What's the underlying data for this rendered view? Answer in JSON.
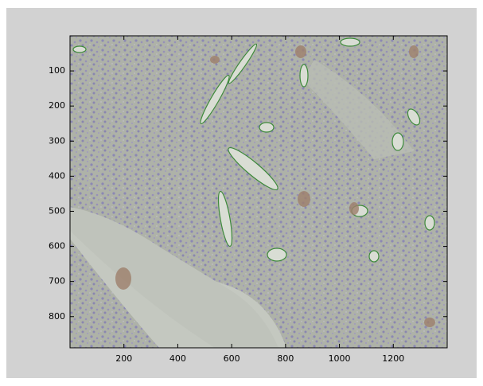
{
  "chart_data": {
    "type": "image",
    "xlim": [
      0,
      1400
    ],
    "ylim": [
      0,
      889
    ],
    "y_reversed": true,
    "xticks": [
      200,
      400,
      600,
      800,
      1000,
      1200
    ],
    "yticks": [
      100,
      200,
      300,
      400,
      500,
      600,
      700,
      800
    ]
  }
}
